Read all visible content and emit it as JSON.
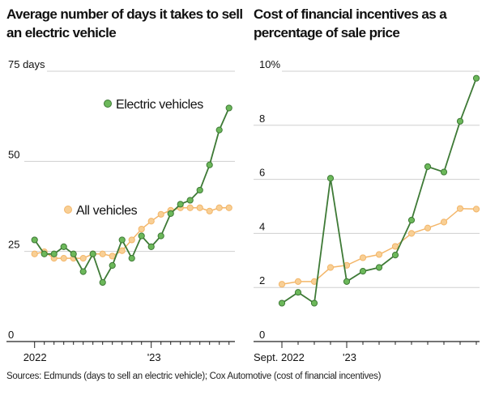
{
  "colors": {
    "ev_fill": "#6cb85a",
    "ev_line": "#3e7a36",
    "all_fill": "#f8cf95",
    "all_line": "#f3b669",
    "grid": "#cfcfcf",
    "axis": "#222222"
  },
  "source": "Sources: Edmunds (days to sell an electric vehicle); Cox Automotive (cost of financial incentives)",
  "chart_data": [
    {
      "type": "line",
      "title": "Average number of days it takes to sell an electric vehicle",
      "unit_label": "75 days",
      "yticks": [
        0,
        25,
        50,
        75
      ],
      "ytick_labels": [
        "0",
        "25",
        "50",
        "75 days"
      ],
      "ylim": [
        0,
        75
      ],
      "grid": true,
      "x": [
        "Jan 2022",
        "Feb 2022",
        "Mar 2022",
        "Apr 2022",
        "May 2022",
        "Jun 2022",
        "Jul 2022",
        "Aug 2022",
        "Sep 2022",
        "Oct 2022",
        "Nov 2022",
        "Dec 2022",
        "Jan 2023",
        "Feb 2023",
        "Mar 2023",
        "Apr 2023",
        "May 2023",
        "Jun 2023",
        "Jul 2023",
        "Aug 2023",
        "Sep 2023"
      ],
      "xtick_labels": [
        {
          "at": "Jan 2022",
          "label": "2022"
        },
        {
          "at": "Jan 2023",
          "label": "'23"
        }
      ],
      "series": [
        {
          "name": "Electric vehicles",
          "key": "ev",
          "values": [
            28.2,
            24.3,
            24.3,
            26.3,
            24.3,
            19.4,
            24.3,
            16.4,
            21.1,
            28.2,
            23.1,
            29.3,
            26.3,
            29.3,
            35.5,
            38.1,
            39.2,
            42.0,
            49.0,
            58.7,
            64.8
          ]
        },
        {
          "name": "All vehicles",
          "key": "all",
          "values": [
            24.3,
            24.9,
            23.1,
            23.1,
            23.1,
            23.1,
            24.3,
            24.3,
            23.7,
            25.2,
            28.2,
            31.2,
            33.4,
            35.3,
            36.4,
            37.1,
            37.1,
            37.1,
            36.2,
            37.1,
            37.1
          ]
        }
      ]
    },
    {
      "type": "line",
      "title": "Cost of financial incentives as a percentage of sale price",
      "unit_label": "10%",
      "yticks": [
        0,
        2,
        4,
        6,
        8,
        10
      ],
      "ytick_labels": [
        "0",
        "2",
        "4",
        "6",
        "8",
        "10%"
      ],
      "ylim": [
        0,
        10
      ],
      "grid": true,
      "x": [
        "Sep 2022",
        "Oct 2022",
        "Nov 2022",
        "Dec 2022",
        "Jan 2023",
        "Feb 2023",
        "Mar 2023",
        "Apr 2023",
        "May 2023",
        "Jun 2023",
        "Jul 2023",
        "Aug 2023",
        "Sep 2023"
      ],
      "xtick_labels": [
        {
          "at": "Sep 2022",
          "label": "Sept. 2022"
        },
        {
          "at": "Jan 2023",
          "label": "'23"
        }
      ],
      "series": [
        {
          "key": "ev",
          "values": [
            1.42,
            1.82,
            1.42,
            6.04,
            2.22,
            2.6,
            2.74,
            3.2,
            4.49,
            6.47,
            6.27,
            8.15,
            9.74
          ]
        },
        {
          "key": "all",
          "values": [
            2.12,
            2.22,
            2.22,
            2.74,
            2.82,
            3.1,
            3.22,
            3.52,
            4.0,
            4.2,
            4.42,
            4.92,
            4.9
          ]
        }
      ]
    }
  ]
}
